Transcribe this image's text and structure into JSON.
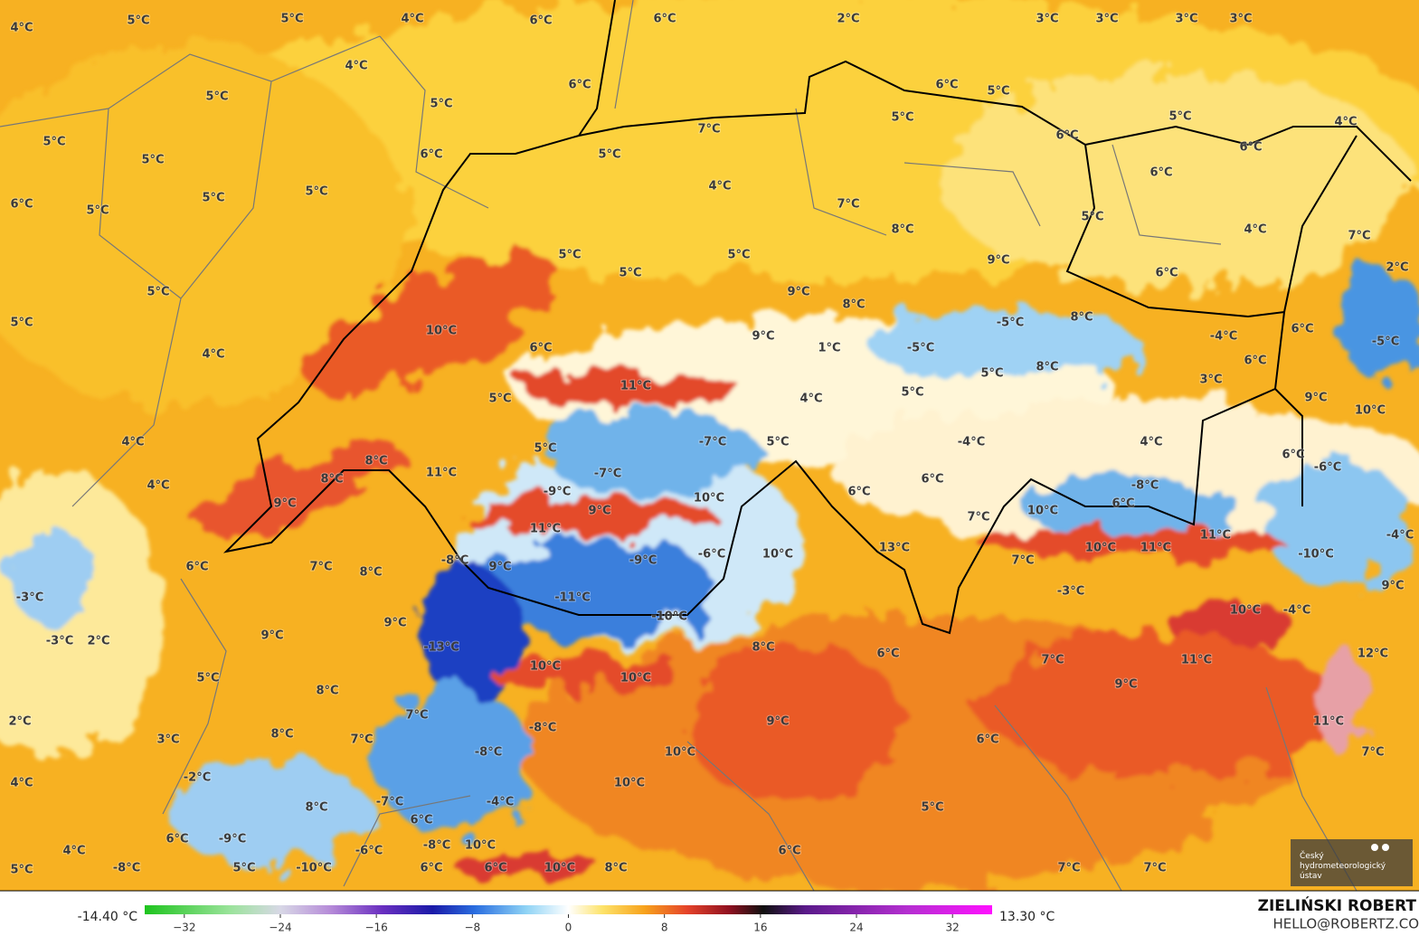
{
  "map": {
    "labels": [
      "4°C",
      "5°C",
      "5°C",
      "4°C",
      "6°C",
      "6°C",
      "2°C",
      "3°C",
      "3°C",
      "3°C",
      "3°C",
      "4°C",
      "5°C",
      "5°C",
      "6°C",
      "6°C",
      "5°C",
      "5°C",
      "7°C",
      "5°C",
      "4°C",
      "6°C",
      "5°C",
      "5°C",
      "6°C",
      "5°C",
      "6°C",
      "6°C",
      "5°C",
      "5°C",
      "5°C",
      "4°C",
      "7°C",
      "6°C",
      "5°C",
      "4°C",
      "7°C",
      "5°C",
      "5°C",
      "5°C",
      "8°C",
      "9°C",
      "6°C",
      "2°C",
      "5°C",
      "9°C",
      "8°C",
      "5°C",
      "10°C",
      "6°C",
      "9°C",
      "1°C",
      "-5°C",
      "8°C",
      "-5°C",
      "-4°C",
      "6°C",
      "-5°C",
      "4°C",
      "11°C",
      "5°C",
      "4°C",
      "5°C",
      "8°C",
      "5°C",
      "6°C",
      "3°C",
      "9°C",
      "10°C",
      "4°C",
      "-7°C",
      "5°C",
      "5°C",
      "-4°C",
      "4°C",
      "6°C",
      "-6°C",
      "4°C",
      "8°C",
      "11°C",
      "8°C",
      "-7°C",
      "6°C",
      "9°C",
      "-9°C",
      "10°C",
      "6°C",
      "6°C",
      "-8°C",
      "9°C",
      "7°C",
      "10°C",
      "11°C",
      "11°C",
      "-4°C",
      "6°C",
      "-6°C",
      "10°C",
      "13°C",
      "10°C",
      "11°C",
      "-10°C",
      "7°C",
      "8°C",
      "-8°C",
      "9°C",
      "-9°C",
      "7°C",
      "-3°C",
      "9°C",
      "-3°C",
      "-11°C",
      "9°C",
      "-10°C",
      "10°C",
      "-4°C",
      "9°C",
      "-3°C",
      "2°C",
      "-13°C",
      "8°C",
      "6°C",
      "12°C",
      "11°C",
      "7°C",
      "10°C",
      "10°C",
      "5°C",
      "8°C",
      "9°C",
      "2°C",
      "7°C",
      "9°C",
      "11°C",
      "-8°C",
      "8°C",
      "7°C",
      "3°C",
      "6°C",
      "10°C",
      "-8°C",
      "7°C",
      "-2°C",
      "4°C",
      "10°C",
      "-4°C",
      "-7°C",
      "8°C",
      "5°C",
      "6°C",
      "6°C",
      "-9°C",
      "-8°C",
      "10°C",
      "-6°C",
      "4°C",
      "6°C",
      "5°C",
      "-8°C",
      "5°C",
      "-10°C",
      "6°C",
      "6°C",
      "10°C",
      "8°C",
      "7°C",
      "7°C"
    ]
  },
  "legend": {
    "min_label": "-14.40 °C",
    "max_label": "13.30 °C",
    "clim": [
      -35.3,
      35.3
    ],
    "ticks": [
      {
        "value": -32,
        "label": "−32"
      },
      {
        "value": -24,
        "label": "−24"
      },
      {
        "value": -16,
        "label": "−16"
      },
      {
        "value": -8,
        "label": "−8"
      },
      0,
      8,
      16,
      24,
      32
    ]
  },
  "credit": {
    "author": "ZIELIŃSKI ROBERT",
    "email": "HELLO@ROBERTZ.CO",
    "logo": [
      "Český",
      "hydrometeorologický",
      "ústav"
    ]
  }
}
